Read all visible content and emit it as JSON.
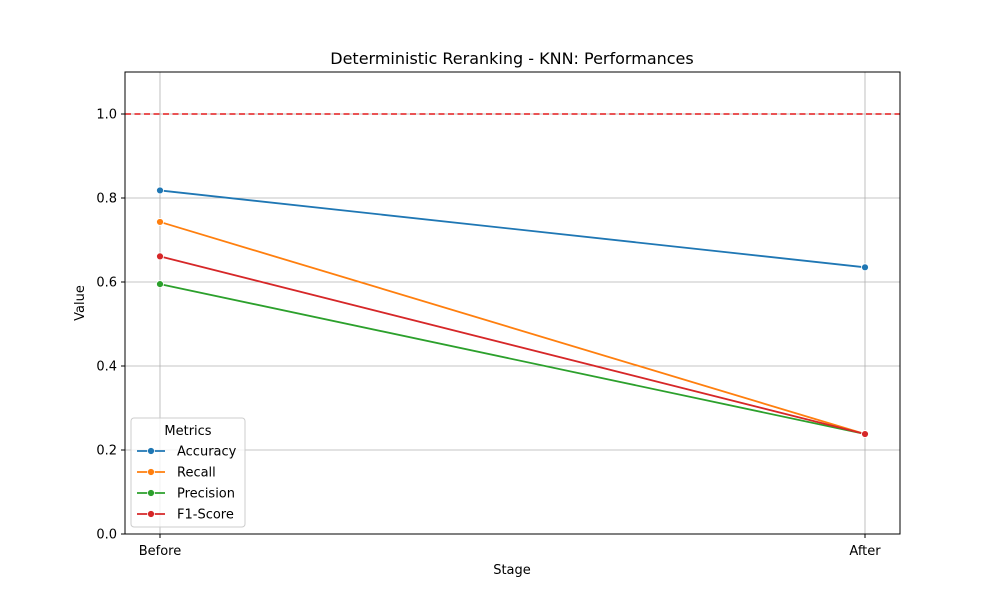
{
  "chart_data": {
    "type": "line",
    "title": "Deterministic Reranking - KNN: Performances",
    "xlabel": "Stage",
    "ylabel": "Value",
    "categories": [
      "Before",
      "After"
    ],
    "ylim": [
      0,
      1.1
    ],
    "yticks": [
      "0.0",
      "0.2",
      "0.4",
      "0.6",
      "0.8",
      "1.0"
    ],
    "grid": true,
    "reference_line": {
      "y": 1.0,
      "color": "#e31a1c",
      "style": "dashed"
    },
    "legend": {
      "title": "Metrics",
      "placement": "lower-left"
    },
    "series": [
      {
        "name": "Accuracy",
        "color": "#1f77b4",
        "values": [
          0.818,
          0.635
        ]
      },
      {
        "name": "Recall",
        "color": "#ff7f0e",
        "values": [
          0.743,
          0.238
        ]
      },
      {
        "name": "Precision",
        "color": "#2ca02c",
        "values": [
          0.595,
          0.238
        ]
      },
      {
        "name": "F1-Score",
        "color": "#d62728",
        "values": [
          0.661,
          0.238
        ]
      }
    ]
  }
}
